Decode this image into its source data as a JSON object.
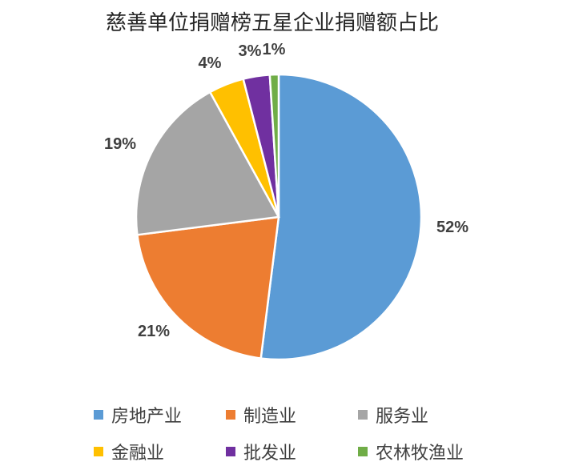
{
  "chart_data": {
    "type": "pie",
    "title": "慈善单位捐赠榜五星企业捐赠额占比",
    "categories": [
      "房地产业",
      "制造业",
      "服务业",
      "金融业",
      "批发业",
      "农林牧渔业"
    ],
    "values": [
      52,
      21,
      19,
      4,
      3,
      1
    ],
    "labels": [
      "52%",
      "21%",
      "19%",
      "4%",
      "3%",
      "1%"
    ],
    "colors": [
      "#5B9BD5",
      "#ED7D31",
      "#A5A5A5",
      "#FFC000",
      "#7030A0",
      "#70AD47"
    ],
    "legend_position": "bottom"
  }
}
